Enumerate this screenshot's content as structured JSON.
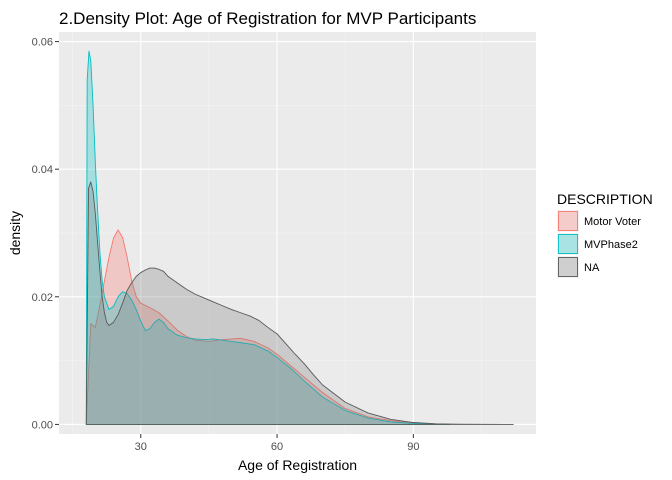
{
  "chart_data": {
    "type": "area",
    "title": "2.Density Plot: Age of Registration for MVP Participants",
    "xlabel": "Age of Registration",
    "ylabel": "density",
    "xlim": [
      12,
      117
    ],
    "ylim": [
      -0.0015,
      0.0615
    ],
    "x_ticks": [
      30,
      60,
      90
    ],
    "x_tick_labels": [
      "30",
      "60",
      "90"
    ],
    "y_ticks": [
      0.0,
      0.02,
      0.04,
      0.06
    ],
    "y_tick_labels": [
      "0.00",
      "0.02",
      "0.04",
      "0.06"
    ],
    "grid": true,
    "legend": {
      "title": "DESCRIPTION",
      "position": "right"
    },
    "series": [
      {
        "name": "Motor Voter",
        "fill": "#F8766D",
        "stroke": "#F8766D",
        "x": [
          18,
          19,
          20,
          21,
          22,
          23,
          24,
          25,
          26,
          27,
          28,
          29,
          30,
          32,
          34,
          36,
          38,
          40,
          42,
          45,
          48,
          50,
          52,
          55,
          58,
          60,
          63,
          66,
          70,
          75,
          80,
          85,
          90,
          95,
          98
        ],
        "y": [
          0.0,
          0.0158,
          0.0152,
          0.0187,
          0.0225,
          0.0262,
          0.0292,
          0.0305,
          0.0293,
          0.0262,
          0.0225,
          0.02,
          0.019,
          0.0183,
          0.0175,
          0.0162,
          0.0148,
          0.0138,
          0.0132,
          0.013,
          0.0133,
          0.0134,
          0.0135,
          0.013,
          0.012,
          0.011,
          0.0092,
          0.0074,
          0.005,
          0.0025,
          0.0012,
          0.0006,
          0.0002,
          5e-05,
          0.0
        ]
      },
      {
        "name": "MVPhase2",
        "fill": "#00BFC4",
        "stroke": "#00BFC4",
        "x": [
          18,
          18.2,
          18.6,
          19,
          19.5,
          20,
          20.5,
          21,
          21.5,
          22,
          23,
          24,
          25,
          26,
          27,
          28,
          29,
          30,
          31,
          32,
          33,
          34,
          35,
          36,
          38,
          40,
          42,
          44,
          46,
          48,
          50,
          52,
          55,
          58,
          60,
          63,
          66,
          70,
          75,
          80,
          85,
          90,
          95,
          98
        ],
        "y": [
          0.0,
          0.054,
          0.0585,
          0.057,
          0.05,
          0.041,
          0.0335,
          0.027,
          0.0225,
          0.02,
          0.018,
          0.0185,
          0.02,
          0.0208,
          0.0205,
          0.0195,
          0.018,
          0.0162,
          0.0147,
          0.015,
          0.016,
          0.0165,
          0.016,
          0.015,
          0.014,
          0.0136,
          0.0134,
          0.0133,
          0.0134,
          0.0132,
          0.013,
          0.0128,
          0.0125,
          0.0115,
          0.0105,
          0.0088,
          0.0068,
          0.0043,
          0.0022,
          0.001,
          0.0004,
          0.00015,
          3e-05,
          0.0
        ]
      },
      {
        "name": "NA",
        "fill": "#7F7F7F",
        "stroke": "#595959",
        "x": [
          18,
          18.5,
          19,
          19.5,
          20,
          20.5,
          21,
          21.5,
          22,
          22.5,
          23,
          24,
          25,
          26,
          27,
          28,
          29,
          30,
          31,
          32,
          33,
          34,
          35,
          36,
          38,
          40,
          42,
          44,
          46,
          48,
          50,
          52,
          54,
          56,
          58,
          60,
          62,
          64,
          66,
          68,
          70,
          75,
          80,
          85,
          90,
          95,
          100,
          105,
          110,
          112
        ],
        "y": [
          0.0,
          0.037,
          0.038,
          0.0365,
          0.033,
          0.0285,
          0.024,
          0.02,
          0.0175,
          0.016,
          0.0155,
          0.016,
          0.0172,
          0.019,
          0.021,
          0.0222,
          0.0232,
          0.0238,
          0.0242,
          0.0245,
          0.0245,
          0.0243,
          0.024,
          0.0232,
          0.0222,
          0.0212,
          0.0204,
          0.0198,
          0.0192,
          0.0186,
          0.018,
          0.0175,
          0.017,
          0.0163,
          0.0152,
          0.0142,
          0.0126,
          0.011,
          0.0095,
          0.0078,
          0.0062,
          0.0035,
          0.0018,
          0.0008,
          0.0003,
          0.0001,
          3e-05,
          1e-05,
          0.0,
          0.0
        ]
      }
    ]
  }
}
